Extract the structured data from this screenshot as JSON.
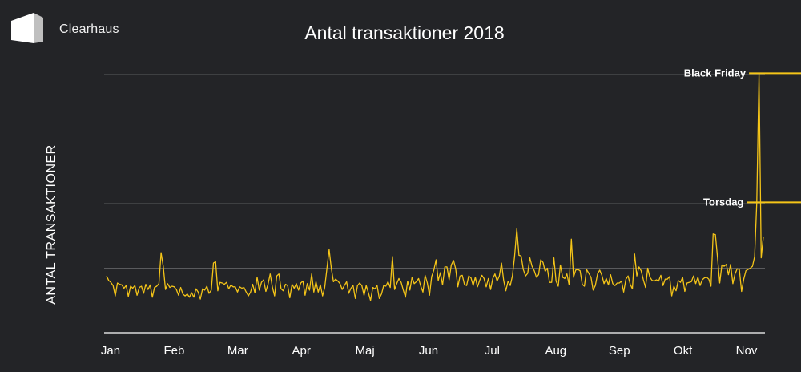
{
  "brand": {
    "name": "Clearhaus"
  },
  "colors": {
    "background": "#232427",
    "line": "#f5c518",
    "grid": "#5a5b5e",
    "text": "#ffffff"
  },
  "chart_data": {
    "type": "line",
    "title": "Antal transaktioner 2018",
    "ylabel": "ANTAL TRANSAKTIONER",
    "xlabel": "",
    "x_ticks": [
      "Jan",
      "Feb",
      "Mar",
      "Apr",
      "Maj",
      "Jun",
      "Jul",
      "Aug",
      "Sep",
      "Okt",
      "Nov"
    ],
    "y_tick_labels_shown": false,
    "grid": "horizontal",
    "ylim": [
      0,
      4
    ],
    "series": [
      {
        "values": [
          0.88,
          0.81,
          0.78,
          0.73,
          0.57,
          0.77,
          0.75,
          0.74,
          0.69,
          0.73,
          0.56,
          0.72,
          0.69,
          0.73,
          0.58,
          0.7,
          0.72,
          0.61,
          0.75,
          0.67,
          0.74,
          0.55,
          0.7,
          0.72,
          0.76,
          1.24,
          1.03,
          0.67,
          0.76,
          0.7,
          0.72,
          0.71,
          0.67,
          0.58,
          0.7,
          0.6,
          0.57,
          0.6,
          0.55,
          0.62,
          0.55,
          0.68,
          0.63,
          0.52,
          0.68,
          0.66,
          0.72,
          0.61,
          0.66,
          1.08,
          1.1,
          0.65,
          0.78,
          0.77,
          0.75,
          0.78,
          0.68,
          0.74,
          0.71,
          0.71,
          0.63,
          0.71,
          0.69,
          0.7,
          0.63,
          0.57,
          0.63,
          0.75,
          0.62,
          0.86,
          0.66,
          0.78,
          0.82,
          0.64,
          0.75,
          0.91,
          0.71,
          0.57,
          0.88,
          0.91,
          0.68,
          0.65,
          0.75,
          0.73,
          0.54,
          0.75,
          0.69,
          0.76,
          0.66,
          0.77,
          0.8,
          0.58,
          0.76,
          0.66,
          0.91,
          0.63,
          0.79,
          0.63,
          0.74,
          0.57,
          0.7,
          0.99,
          1.29,
          1.0,
          0.79,
          0.83,
          0.8,
          0.76,
          0.67,
          0.73,
          0.79,
          0.61,
          0.69,
          0.73,
          0.53,
          0.73,
          0.77,
          0.73,
          0.58,
          0.73,
          0.62,
          0.5,
          0.7,
          0.68,
          0.73,
          0.53,
          0.6,
          0.73,
          0.72,
          0.79,
          0.7,
          1.18,
          0.67,
          0.76,
          0.84,
          0.78,
          0.66,
          0.55,
          0.8,
          0.66,
          0.86,
          0.76,
          0.79,
          0.84,
          0.72,
          0.63,
          0.89,
          0.77,
          0.58,
          0.87,
          0.97,
          1.13,
          0.81,
          0.93,
          0.74,
          1.02,
          1.02,
          0.82,
          1.05,
          1.12,
          0.99,
          0.71,
          0.88,
          0.89,
          0.75,
          0.73,
          0.88,
          0.85,
          0.73,
          0.86,
          0.71,
          0.81,
          0.89,
          0.84,
          0.71,
          0.84,
          0.67,
          0.84,
          0.91,
          0.8,
          0.88,
          1.08,
          0.81,
          0.65,
          0.8,
          0.73,
          0.88,
          1.18,
          1.61,
          1.2,
          1.19,
          0.98,
          0.88,
          0.92,
          1.16,
          1.03,
          0.96,
          0.86,
          0.9,
          1.13,
          1.09,
          0.95,
          1.0,
          0.78,
          0.78,
          1.16,
          0.8,
          0.72,
          1.05,
          0.86,
          0.84,
          0.91,
          0.74,
          1.45,
          0.86,
          0.97,
          0.98,
          0.96,
          0.75,
          0.72,
          0.98,
          0.92,
          0.86,
          0.66,
          0.73,
          0.91,
          0.97,
          0.89,
          0.76,
          0.84,
          0.74,
          0.9,
          0.76,
          0.73,
          0.77,
          0.77,
          0.8,
          0.63,
          0.83,
          0.88,
          0.75,
          0.68,
          1.22,
          0.88,
          1.02,
          0.96,
          0.82,
          0.7,
          1.0,
          0.86,
          0.81,
          0.8,
          0.82,
          0.8,
          0.89,
          0.73,
          0.83,
          0.83,
          0.87,
          0.57,
          0.72,
          0.65,
          0.81,
          0.78,
          0.86,
          0.64,
          0.77,
          0.78,
          0.79,
          0.88,
          0.76,
          0.86,
          0.73,
          0.82,
          0.85,
          0.86,
          0.83,
          0.72,
          1.53,
          1.52,
          1.16,
          0.77,
          1.05,
          1.03,
          1.06,
          0.9,
          1.06,
          0.76,
          0.91,
          0.99,
          0.98,
          0.64,
          0.83,
          0.96,
          0.98,
          1.0,
          1.03,
          1.18,
          2.02,
          4.02,
          1.16,
          1.49
        ],
        "highlight": "Black Friday"
      }
    ],
    "annotations": [
      {
        "label": "Black Friday",
        "x": "2018-11-23",
        "y": 4.02
      },
      {
        "label": "Torsdag",
        "x": "2018-11-22",
        "y": 2.02
      }
    ]
  }
}
